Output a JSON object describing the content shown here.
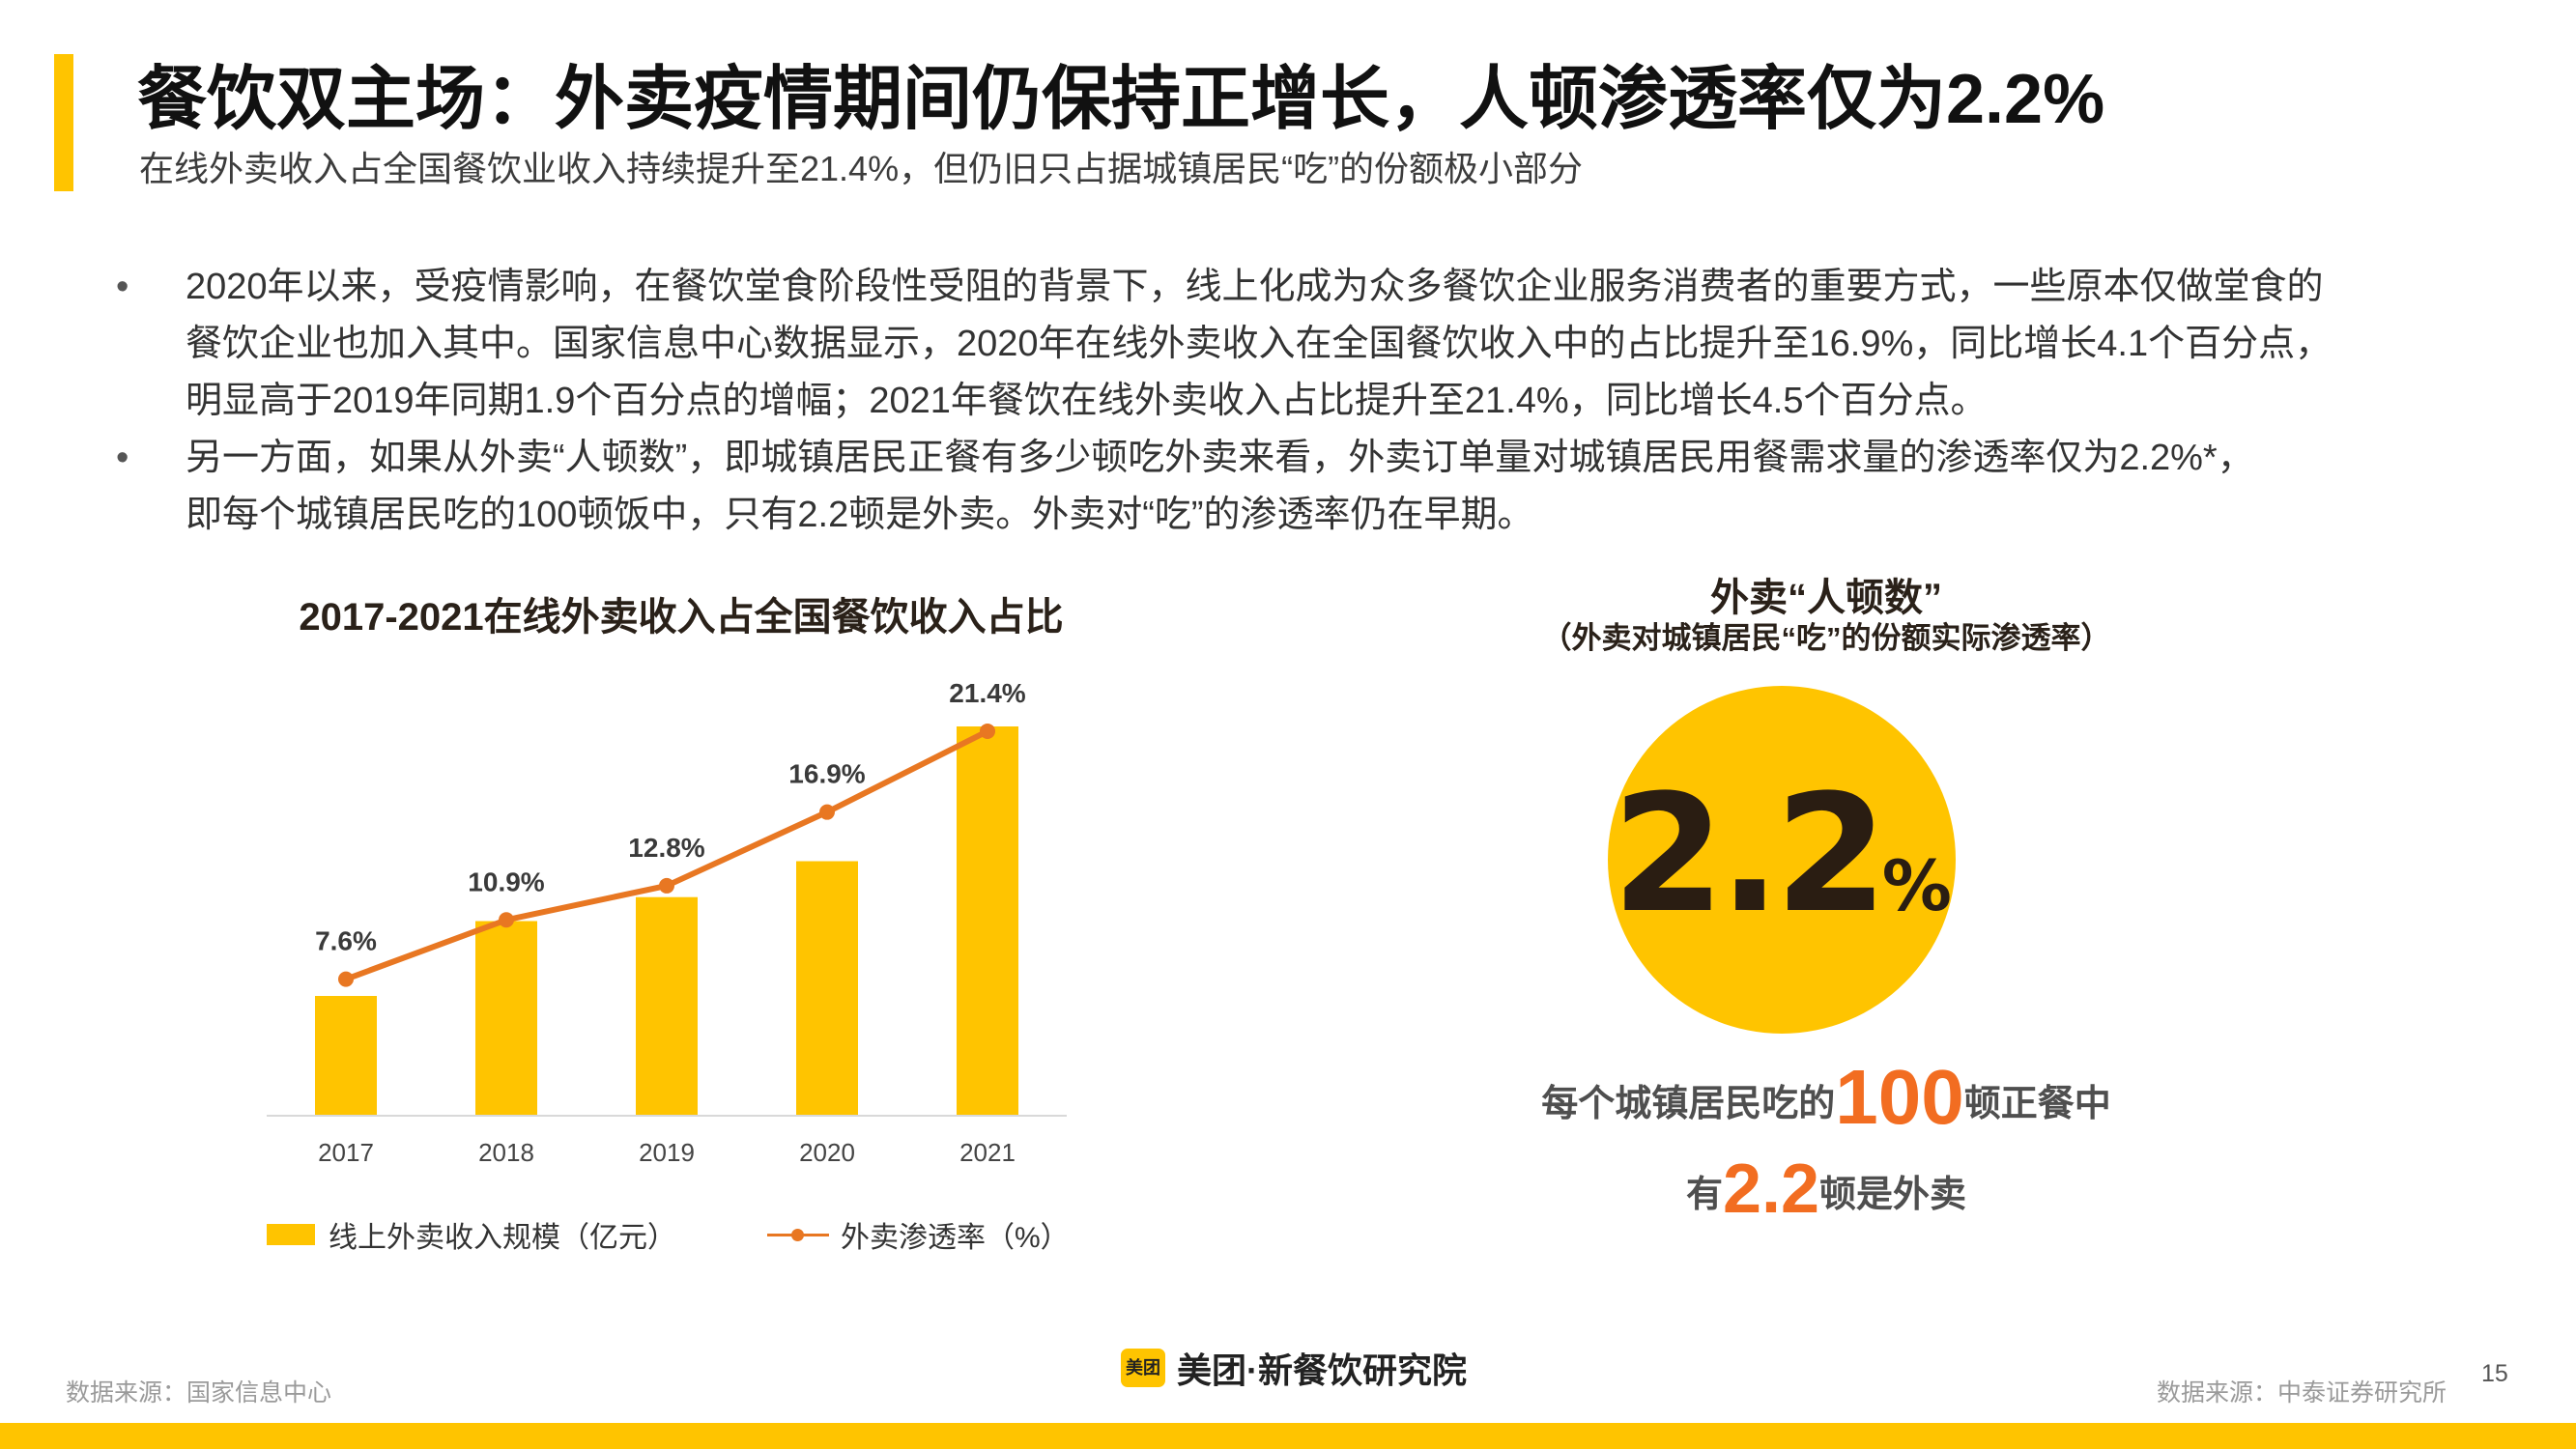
{
  "title": "餐饮双主场：外卖疫情期间仍保持正增长，人顿渗透率仅为2.2%",
  "subtitle": "在线外卖收入占全国餐饮业收入持续提升至21.4%，但仍旧只占据城镇居民“吃”的份额极小部分",
  "bullets": [
    {
      "marker": "•",
      "lines": [
        "2020年以来，受疫情影响，在餐饮堂食阶段性受阻的背景下，线上化成为众多餐饮企业服务消费者的重要方式，一些原本仅做堂食的",
        "餐饮企业也加入其中。国家信息中心数据显示，2020年在线外卖收入在全国餐饮收入中的占比提升至16.9%，同比增长4.1个百分点，",
        "明显高于2019年同期1.9个百分点的增幅；2021年餐饮在线外卖收入占比提升至21.4%，同比增长4.5个百分点。"
      ]
    },
    {
      "marker": "•",
      "lines": [
        "另一方面，如果从外卖“人顿数”，即城镇居民正餐有多少顿吃外卖来看，外卖订单量对城镇居民用餐需求量的渗透率仅为2.2%*，",
        "即每个城镇居民吃的100顿饭中，只有2.2顿是外卖。外卖对“吃”的渗透率仍在早期。"
      ]
    }
  ],
  "chart_data": {
    "type": "bar",
    "title": "2017-2021在线外卖收入占全国餐饮收入占比",
    "categories": [
      "2017",
      "2018",
      "2019",
      "2020",
      "2021"
    ],
    "series": [
      {
        "name": "线上外卖收入规模（亿元）",
        "type": "bar",
        "color": "#FFC400",
        "values": [
          2000,
          3250,
          3650,
          4250,
          6500
        ]
      },
      {
        "name": "外卖渗透率（%）",
        "type": "line",
        "color": "#E87722",
        "values": [
          7.6,
          10.9,
          12.8,
          16.9,
          21.4
        ],
        "labels": [
          "7.6%",
          "10.9%",
          "12.8%",
          "16.9%",
          "21.4%"
        ]
      }
    ],
    "bar_ylim": [
      0,
      7500
    ],
    "line_ylim": [
      0,
      25
    ],
    "grid": false,
    "legend_position": "bottom"
  },
  "highlight": {
    "title": "外卖“人顿数”",
    "subtitle": "（外卖对城镇居民“吃”的份额实际渗透率）",
    "value": "2.2",
    "unit": "%",
    "circle_color": "#FFC400",
    "caption1_pre": "每个城镇居民吃的",
    "caption1_num": "100",
    "caption1_post": "顿正餐中",
    "caption2_pre": "有",
    "caption2_num": "2.2",
    "caption2_post": "顿是外卖",
    "accent_color": "#F26D21"
  },
  "footer": {
    "source_left": "数据来源：国家信息中心",
    "source_right": "数据来源：中泰证券研究所",
    "page_number": "15",
    "logo_badge": "美团",
    "logo_text": "美团·新餐饮研究院"
  }
}
